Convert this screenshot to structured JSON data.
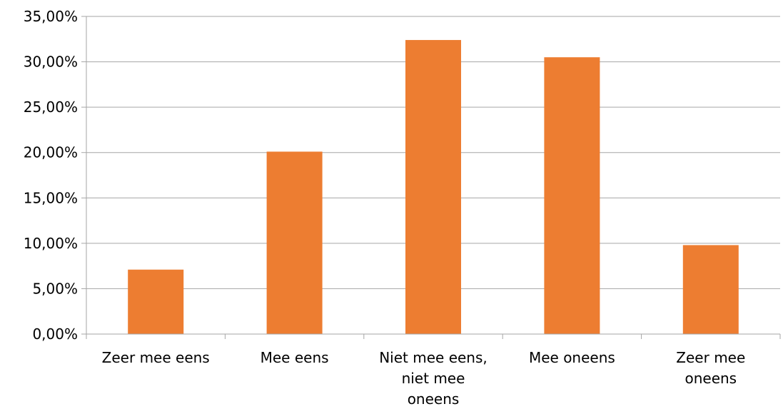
{
  "chart_data": {
    "type": "bar",
    "title": "",
    "xlabel": "",
    "ylabel": "",
    "categories": [
      [
        "Zeer mee eens"
      ],
      [
        "Mee eens"
      ],
      [
        "Niet mee eens,",
        "niet mee",
        "oneens"
      ],
      [
        "Mee oneens"
      ],
      [
        "Zeer mee",
        "oneens"
      ]
    ],
    "values": [
      7.1,
      20.1,
      32.4,
      30.5,
      9.8
    ],
    "ylim": [
      0,
      35
    ],
    "yticks": [
      0,
      5,
      10,
      15,
      20,
      25,
      30,
      35
    ],
    "ytick_labels": [
      "0,00%",
      "5,00%",
      "10,00%",
      "15,00%",
      "20,00%",
      "25,00%",
      "30,00%",
      "35,00%"
    ],
    "grid": true,
    "legend": "none",
    "bar_color": "#ED7D31",
    "grid_color": "#A6A6A6"
  }
}
